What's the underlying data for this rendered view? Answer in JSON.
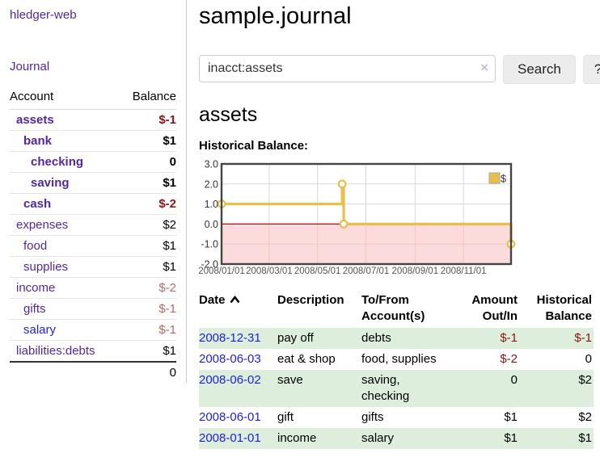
{
  "colors": {
    "purple_link": "#54279e",
    "blue_link": "#1f1fd6",
    "negative_strong": "#8b1414",
    "negative_muted": "#b06a6a",
    "row_green": "#ddeedd",
    "chart_line": "#e7bf4a",
    "chart_negative_fill": "#fbdbdb",
    "chart_zero_line": "#a01010",
    "sidebar_border": "#cccccc"
  },
  "sidebar": {
    "app_title": "hledger-web",
    "journal_link": "Journal",
    "accounts_table": {
      "headers": {
        "account": "Account",
        "balance": "Balance"
      },
      "rows": [
        {
          "account": "assets",
          "depth": 0,
          "bold": true,
          "link_class": "purple",
          "balance": "$-1",
          "balance_class": "neg-strong"
        },
        {
          "account": "bank",
          "depth": 1,
          "bold": true,
          "link_class": "purple",
          "balance": "$1",
          "balance_class": ""
        },
        {
          "account": "checking",
          "depth": 2,
          "bold": true,
          "link_class": "purple",
          "balance": "0",
          "balance_class": ""
        },
        {
          "account": "saving",
          "depth": 2,
          "bold": true,
          "link_class": "purple",
          "balance": "$1",
          "balance_class": ""
        },
        {
          "account": "cash",
          "depth": 1,
          "bold": true,
          "link_class": "purple",
          "balance": "$-2",
          "balance_class": "neg-strong"
        },
        {
          "account": "expenses",
          "depth": 0,
          "bold": false,
          "link_class": "purple",
          "balance": "$2",
          "balance_class": ""
        },
        {
          "account": "food",
          "depth": 1,
          "bold": false,
          "link_class": "purple",
          "balance": "$1",
          "balance_class": ""
        },
        {
          "account": "supplies",
          "depth": 1,
          "bold": false,
          "link_class": "purple",
          "balance": "$1",
          "balance_class": ""
        },
        {
          "account": "income",
          "depth": 0,
          "bold": false,
          "link_class": "purple",
          "balance": "$-2",
          "balance_class": "neg-muted"
        },
        {
          "account": "gifts",
          "depth": 1,
          "bold": false,
          "link_class": "purple",
          "balance": "$-1",
          "balance_class": "neg-muted"
        },
        {
          "account": "salary",
          "depth": 1,
          "bold": false,
          "link_class": "blue",
          "balance": "$-1",
          "balance_class": "neg-muted"
        },
        {
          "account": "liabilities:debts",
          "depth": 0,
          "bold": false,
          "link_class": "purple",
          "balance": "$1",
          "balance_class": ""
        }
      ],
      "total": "0"
    }
  },
  "main": {
    "title": "sample.journal",
    "search": {
      "value": "inacct:assets",
      "clear_icon": "×",
      "button_label": "Search",
      "help_label": "?"
    },
    "account_heading": "assets",
    "chart_label": "Historical Balance:",
    "register_table": {
      "headers": [
        {
          "label": "Date",
          "sorted": "asc",
          "align": "left"
        },
        {
          "label": "Description",
          "align": "left"
        },
        {
          "label": "To/From Account(s)",
          "align": "left"
        },
        {
          "label": "Amount Out/In",
          "align": "right"
        },
        {
          "label": "Historical Balance",
          "align": "right"
        }
      ],
      "rows": [
        {
          "date": "2008-12-31",
          "description": "pay off",
          "accounts": "debts",
          "amount": "$-1",
          "amount_negative": true,
          "balance": "$-1",
          "balance_negative": true,
          "row_bg": "green"
        },
        {
          "date": "2008-06-03",
          "description": "eat & shop",
          "accounts": "food, supplies",
          "amount": "$-2",
          "amount_negative": true,
          "balance": "0",
          "balance_negative": false,
          "row_bg": "white"
        },
        {
          "date": "2008-06-02",
          "description": "save",
          "accounts": "saving, checking",
          "amount": "0",
          "amount_negative": false,
          "balance": "$2",
          "balance_negative": false,
          "row_bg": "green"
        },
        {
          "date": "2008-06-01",
          "description": "gift",
          "accounts": "gifts",
          "amount": "$1",
          "amount_negative": false,
          "balance": "$2",
          "balance_negative": false,
          "row_bg": "white"
        },
        {
          "date": "2008-01-01",
          "description": "income",
          "accounts": "salary",
          "amount": "$1",
          "amount_negative": false,
          "balance": "$1",
          "balance_negative": false,
          "row_bg": "green"
        }
      ]
    }
  },
  "chart_data": {
    "type": "line",
    "step": true,
    "title": "Historical Balance",
    "x_start": "2008-01-01",
    "x_span_days": 365,
    "series": [
      {
        "name": "$",
        "color": "#e7bf4a",
        "points": [
          {
            "date": "2008-01-01",
            "value": 1
          },
          {
            "date": "2008-06-01",
            "value": 2
          },
          {
            "date": "2008-06-03",
            "value": 0
          },
          {
            "date": "2008-12-31",
            "value": -1
          }
        ]
      }
    ],
    "ylim": [
      -2,
      3
    ],
    "yticks": [
      "3.0",
      "2.0",
      "1.0",
      "0.0",
      "-1.0",
      "-2.0"
    ],
    "xticks": [
      {
        "label": "2008/01/01",
        "date": "2008-01-01"
      },
      {
        "label": "2008/03/01",
        "date": "2008-03-01"
      },
      {
        "label": "2008/05/01",
        "date": "2008-05-01"
      },
      {
        "label": "2008/07/01",
        "date": "2008-07-01"
      },
      {
        "label": "2008/09/01",
        "date": "2008-09-01"
      },
      {
        "label": "2008/11/01",
        "date": "2008-11-01"
      }
    ],
    "legend": {
      "label": "$",
      "position": "top-right"
    },
    "grid": true,
    "negative_region_shaded": true
  }
}
